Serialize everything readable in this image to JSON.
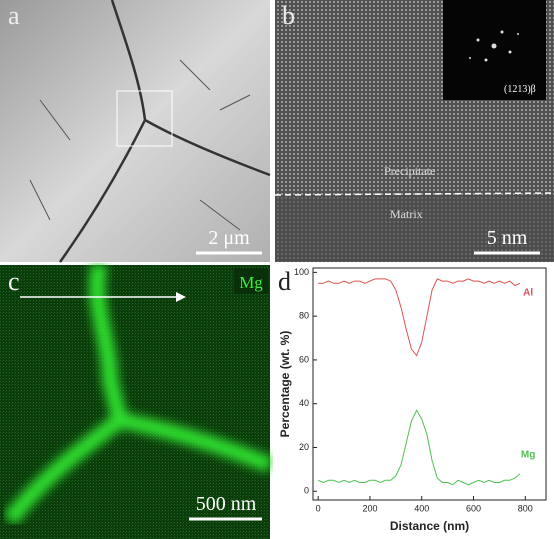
{
  "panels": [
    {
      "label": "a",
      "scale_bar": "2 μm"
    },
    {
      "label": "b",
      "scale_bar": "5 nm",
      "annotations": [
        "Precipitate",
        "Matrix"
      ],
      "inset_label": "(1213)β"
    },
    {
      "label": "c",
      "scale_bar": "500 nm",
      "element": "Mg"
    }
  ],
  "chart_data": {
    "type": "line",
    "label": "d",
    "x_label": "Distance (nm)",
    "y_label": "Percentage (wt. %)",
    "x": [
      0,
      20,
      40,
      60,
      80,
      100,
      120,
      140,
      160,
      180,
      200,
      220,
      240,
      260,
      280,
      300,
      320,
      340,
      360,
      380,
      400,
      420,
      440,
      460,
      480,
      500,
      520,
      540,
      560,
      580,
      600,
      620,
      640,
      660,
      680,
      700,
      720,
      740,
      760,
      780
    ],
    "series": [
      {
        "name": "Al",
        "color": "#e05050",
        "values": [
          95,
          95,
          96,
          95,
          95,
          96,
          95,
          96,
          96,
          95,
          96,
          97,
          97,
          97,
          96,
          92,
          84,
          74,
          65,
          62,
          68,
          80,
          92,
          97,
          96,
          96,
          95,
          96,
          96,
          97,
          96,
          96,
          95,
          96,
          95,
          96,
          95,
          96,
          94,
          95
        ]
      },
      {
        "name": "Mg",
        "color": "#50c050",
        "values": [
          5,
          4,
          5,
          5,
          4,
          5,
          4,
          5,
          4,
          4,
          5,
          5,
          4,
          5,
          5,
          7,
          12,
          22,
          32,
          37,
          33,
          26,
          14,
          6,
          4,
          4,
          3,
          5,
          4,
          3,
          4,
          5,
          4,
          5,
          4,
          4,
          5,
          5,
          6,
          8
        ]
      }
    ],
    "xlim": [
      -20,
      880
    ],
    "ylim": [
      -4,
      102
    ],
    "xticks": [
      0,
      200,
      400,
      600,
      800
    ],
    "yticks": [
      0,
      20,
      40,
      60,
      80,
      100
    ]
  }
}
